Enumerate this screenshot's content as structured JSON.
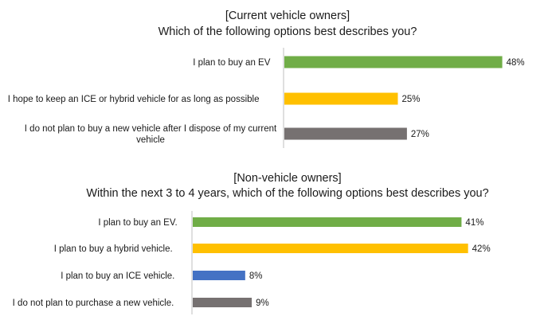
{
  "chart_data": [
    {
      "type": "bar",
      "orientation": "horizontal",
      "title": "[Current vehicle owners]",
      "subtitle": "Which of the following options best describes you?",
      "categories": [
        [
          "I plan to buy an EV"
        ],
        [
          "I hope to keep an ICE or hybrid vehicle for as long as possible"
        ],
        [
          "I do not plan to buy a new vehicle after I dispose of my current",
          "vehicle"
        ]
      ],
      "values": [
        48,
        25,
        27
      ],
      "value_labels": [
        "48%",
        "25%",
        "27%"
      ],
      "colors": [
        "#70ad47",
        "#ffc000",
        "#767171"
      ],
      "xlim": [
        0,
        100
      ],
      "grid": false,
      "legend": "none"
    },
    {
      "type": "bar",
      "orientation": "horizontal",
      "title": "[Non-vehicle owners]",
      "subtitle": "Within the next 3 to 4 years, which of the following options best describes you?",
      "categories": [
        [
          "I plan to buy an EV."
        ],
        [
          "I plan to buy a hybrid vehicle."
        ],
        [
          "I plan to buy an ICE vehicle."
        ],
        [
          "I do not plan to purchase a new vehicle."
        ]
      ],
      "values": [
        41,
        42,
        8,
        9
      ],
      "value_labels": [
        "41%",
        "42%",
        "8%",
        "9%"
      ],
      "colors": [
        "#70ad47",
        "#ffc000",
        "#4472c4",
        "#767171"
      ],
      "xlim": [
        0,
        100
      ],
      "grid": false,
      "legend": "none"
    }
  ]
}
